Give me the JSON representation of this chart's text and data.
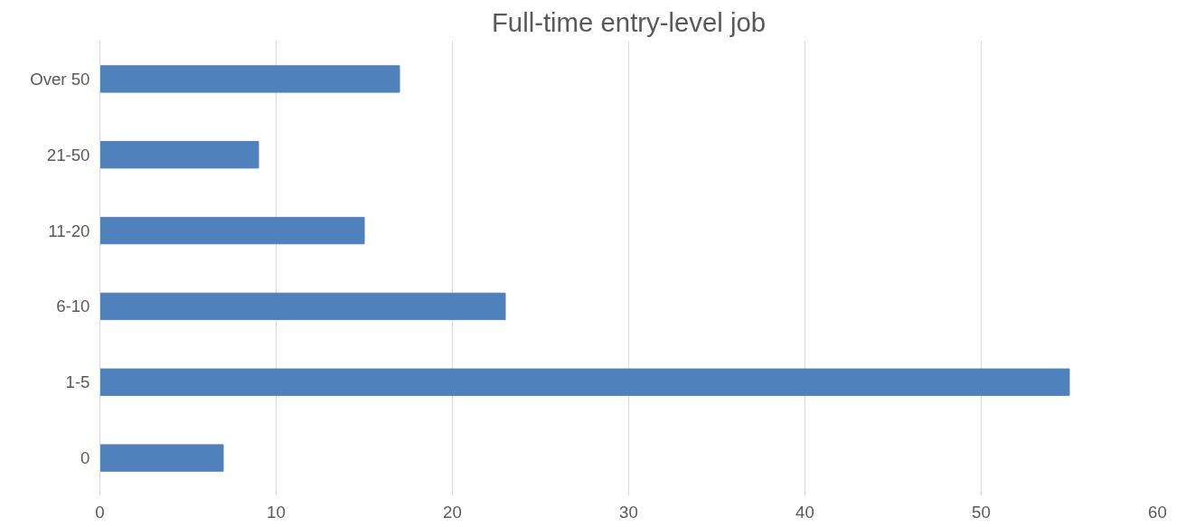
{
  "chart_data": {
    "type": "bar",
    "orientation": "horizontal",
    "title": "Full-time entry-level job",
    "categories": [
      "Over 50",
      "21-50",
      "11-20",
      "6-10",
      "1-5",
      "0"
    ],
    "values": [
      17,
      9,
      15,
      23,
      55,
      7
    ],
    "color": "#4f81bd",
    "xlim": [
      0,
      60
    ],
    "xticks": [
      0,
      10,
      20,
      30,
      40,
      50,
      60
    ],
    "grid": "x"
  }
}
